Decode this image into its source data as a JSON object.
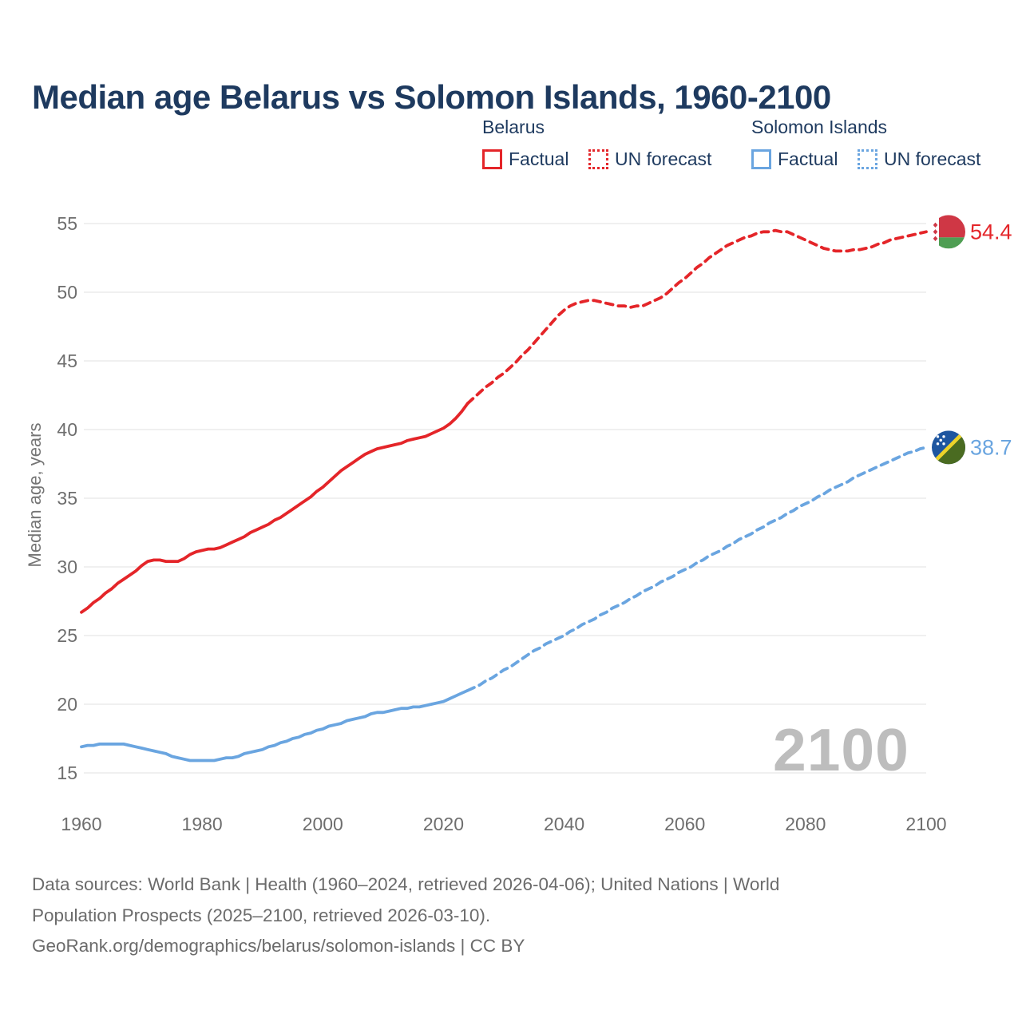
{
  "title": "Median age Belarus vs Solomon Islands, 1960-2100",
  "watermark": "2100",
  "colors": {
    "belarus": "#e42529",
    "solomon": "#6aa5e0",
    "title_text": "#1e3a5f",
    "legend_text": "#1e3a5f",
    "tick_text": "#6e6e6e",
    "axis_title_text": "#757575",
    "grid": "#ececec",
    "footer_text": "#6b6b6b",
    "watermark_text": "#bdbdbd"
  },
  "legend": {
    "groups": [
      {
        "name": "Belarus",
        "color": "#e42529",
        "items": [
          {
            "label": "Factual",
            "style": "solid"
          },
          {
            "label": "UN forecast",
            "style": "dotted"
          }
        ]
      },
      {
        "name": "Solomon Islands",
        "color": "#6aa5e0",
        "items": [
          {
            "label": "Factual",
            "style": "solid"
          },
          {
            "label": "UN forecast",
            "style": "dotted"
          }
        ]
      }
    ]
  },
  "y_axis": {
    "title": "Median age, years",
    "ticks": [
      55,
      50,
      45,
      40,
      35,
      30,
      25,
      20,
      15
    ]
  },
  "x_axis": {
    "ticks": [
      1960,
      1980,
      2000,
      2020,
      2040,
      2060,
      2080,
      2100
    ]
  },
  "footer": {
    "lines": [
      "Data sources: World Bank | Health (1960–2024, retrieved 2026-04-06); United Nations | World",
      "Population Prospects (2025–2100, retrieved 2026-03-10).",
      "GeoRank.org/demographics/belarus/solomon-islands | CC BY"
    ]
  },
  "flags": {
    "belarus": {
      "red": "#cf3745",
      "green": "#4f9e53",
      "white": "#ffffff"
    },
    "solomon": {
      "blue": "#1e56a0",
      "green": "#4a6b21",
      "yellow": "#edd32a",
      "white": "#ffffff"
    }
  },
  "chart_data": {
    "type": "line",
    "title": "Median age Belarus vs Solomon Islands, 1960-2100",
    "xlabel": "",
    "ylabel": "Median age, years",
    "xlim": [
      1960,
      2100
    ],
    "ylim": [
      15,
      55
    ],
    "grid": "horizontal-only",
    "legend_position": "top-right",
    "series": [
      {
        "name": "Belarus factual",
        "country": "Belarus",
        "segment": "factual",
        "style": "solid",
        "color": "#e42529",
        "start_year": 1960,
        "end_year": 2024,
        "values": [
          26.7,
          27.0,
          27.4,
          27.7,
          28.1,
          28.4,
          28.8,
          29.1,
          29.4,
          29.7,
          30.1,
          30.4,
          30.5,
          30.5,
          30.4,
          30.4,
          30.4,
          30.6,
          30.9,
          31.1,
          31.2,
          31.3,
          31.3,
          31.4,
          31.6,
          31.8,
          32.0,
          32.2,
          32.5,
          32.7,
          32.9,
          33.1,
          33.4,
          33.6,
          33.9,
          34.2,
          34.5,
          34.8,
          35.1,
          35.5,
          35.8,
          36.2,
          36.6,
          37.0,
          37.3,
          37.6,
          37.9,
          38.2,
          38.4,
          38.6,
          38.7,
          38.8,
          38.9,
          39.0,
          39.2,
          39.3,
          39.4,
          39.5,
          39.7,
          39.9,
          40.1,
          40.4,
          40.8,
          41.3,
          41.9
        ]
      },
      {
        "name": "Belarus UN forecast",
        "country": "Belarus",
        "segment": "forecast",
        "style": "dashed",
        "color": "#e42529",
        "start_year": 2024,
        "end_year": 2100,
        "values": [
          41.9,
          42.3,
          42.7,
          43.1,
          43.4,
          43.8,
          44.1,
          44.5,
          44.9,
          45.4,
          45.8,
          46.3,
          46.8,
          47.3,
          47.8,
          48.3,
          48.7,
          49.0,
          49.2,
          49.3,
          49.4,
          49.4,
          49.3,
          49.2,
          49.1,
          49.0,
          49.0,
          48.9,
          49.0,
          49.0,
          49.2,
          49.4,
          49.6,
          49.9,
          50.3,
          50.7,
          51.0,
          51.4,
          51.8,
          52.1,
          52.5,
          52.8,
          53.1,
          53.4,
          53.6,
          53.8,
          54.0,
          54.1,
          54.3,
          54.4,
          54.4,
          54.5,
          54.4,
          54.4,
          54.2,
          54.0,
          53.8,
          53.6,
          53.4,
          53.2,
          53.1,
          53.0,
          53.0,
          53.0,
          53.1,
          53.1,
          53.2,
          53.3,
          53.5,
          53.6,
          53.8,
          53.9,
          54.0,
          54.1,
          54.2,
          54.3,
          54.4
        ]
      },
      {
        "name": "Solomon Islands factual",
        "country": "Solomon Islands",
        "segment": "factual",
        "style": "solid",
        "color": "#6aa5e0",
        "start_year": 1960,
        "end_year": 2024,
        "values": [
          16.9,
          17.0,
          17.0,
          17.1,
          17.1,
          17.1,
          17.1,
          17.1,
          17.0,
          16.9,
          16.8,
          16.7,
          16.6,
          16.5,
          16.4,
          16.2,
          16.1,
          16.0,
          15.9,
          15.9,
          15.9,
          15.9,
          15.9,
          16.0,
          16.1,
          16.1,
          16.2,
          16.4,
          16.5,
          16.6,
          16.7,
          16.9,
          17.0,
          17.2,
          17.3,
          17.5,
          17.6,
          17.8,
          17.9,
          18.1,
          18.2,
          18.4,
          18.5,
          18.6,
          18.8,
          18.9,
          19.0,
          19.1,
          19.3,
          19.4,
          19.4,
          19.5,
          19.6,
          19.7,
          19.7,
          19.8,
          19.8,
          19.9,
          20.0,
          20.1,
          20.2,
          20.4,
          20.6,
          20.8,
          21.0
        ]
      },
      {
        "name": "Solomon Islands UN forecast",
        "country": "Solomon Islands",
        "segment": "forecast",
        "style": "dashed",
        "color": "#6aa5e0",
        "start_year": 2024,
        "end_year": 2100,
        "values": [
          21.0,
          21.2,
          21.4,
          21.7,
          21.9,
          22.2,
          22.5,
          22.7,
          23.0,
          23.3,
          23.6,
          23.9,
          24.1,
          24.4,
          24.6,
          24.8,
          25.0,
          25.3,
          25.5,
          25.8,
          26.0,
          26.2,
          26.5,
          26.7,
          27.0,
          27.2,
          27.4,
          27.7,
          27.9,
          28.2,
          28.4,
          28.6,
          28.9,
          29.1,
          29.3,
          29.6,
          29.8,
          30.0,
          30.3,
          30.5,
          30.8,
          31.0,
          31.2,
          31.5,
          31.7,
          32.0,
          32.2,
          32.4,
          32.7,
          32.9,
          33.2,
          33.4,
          33.6,
          33.9,
          34.1,
          34.4,
          34.6,
          34.8,
          35.1,
          35.3,
          35.6,
          35.8,
          36.0,
          36.2,
          36.5,
          36.7,
          36.9,
          37.1,
          37.3,
          37.5,
          37.7,
          37.9,
          38.1,
          38.3,
          38.4,
          38.6,
          38.7
        ]
      }
    ],
    "end_labels": [
      {
        "country": "Belarus",
        "value": 54.4,
        "label": "54.4",
        "flag": "belarus",
        "color": "#e42529"
      },
      {
        "country": "Solomon Islands",
        "value": 38.7,
        "label": "38.7",
        "flag": "solomon",
        "color": "#6aa5e0"
      }
    ]
  }
}
